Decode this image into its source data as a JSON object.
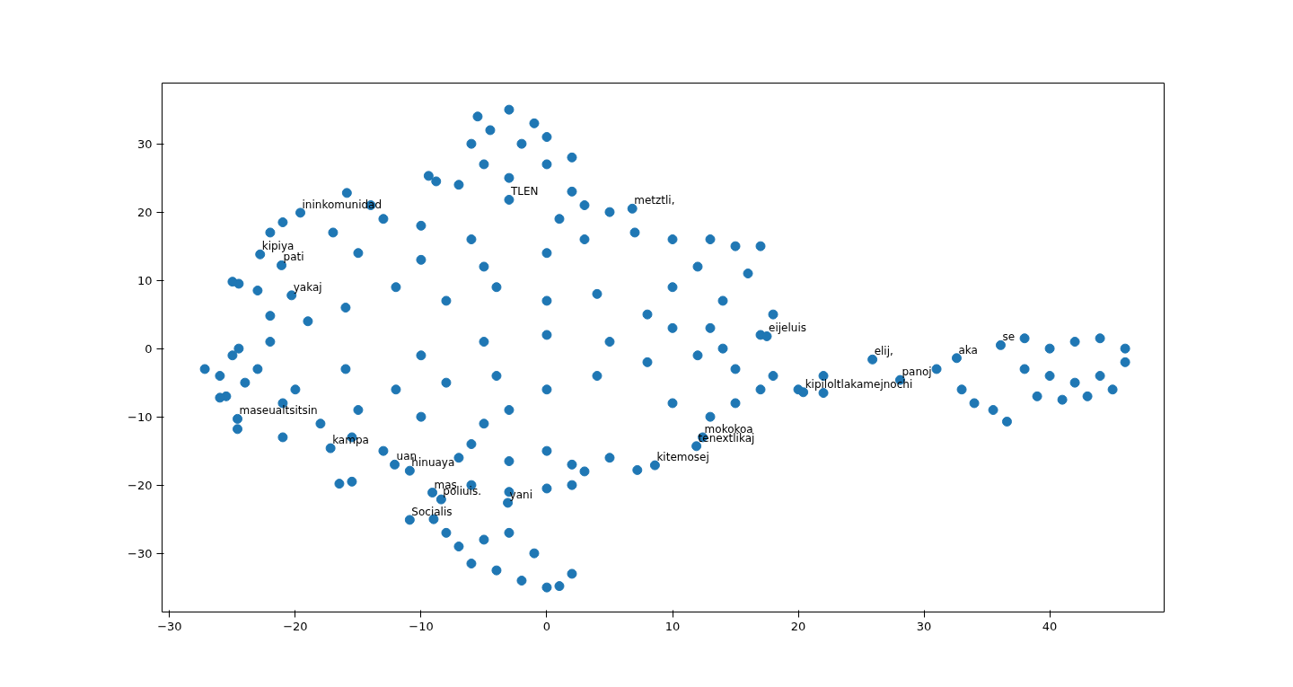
{
  "chart_data": {
    "type": "scatter",
    "color": "#1f77b4",
    "marker": "circle",
    "grid": false,
    "xlim": [
      -30.6,
      49.1
    ],
    "ylim": [
      -38.6,
      38.9
    ],
    "xticks": [
      -30,
      -20,
      -10,
      0,
      10,
      20,
      30,
      40
    ],
    "yticks": [
      -30,
      -20,
      -10,
      0,
      10,
      20,
      30
    ],
    "x": [
      -5.5,
      -3,
      -1,
      -4.5,
      -6,
      -2,
      0,
      -5,
      -3,
      0,
      2,
      -7,
      -9.4,
      -8.8,
      -3,
      2,
      3,
      5,
      6.8,
      1,
      -15.9,
      -14,
      -19.6,
      -21,
      -22,
      -22.8,
      -21.1,
      -24.5,
      -25,
      -23,
      -20.3,
      -22,
      -17,
      -13,
      -10,
      -6,
      -15,
      -10,
      -5,
      0,
      3,
      7,
      10,
      13,
      15,
      17,
      12,
      16,
      10,
      14,
      18,
      17,
      13,
      8,
      4,
      0,
      -4,
      -8,
      -12,
      -16,
      -19,
      -22,
      -24.5,
      -25,
      -27.2,
      -26,
      -23,
      -24,
      -20,
      -25.5,
      -26,
      -21,
      -24.6,
      -24.6,
      -21,
      -17.2,
      -15.5,
      -12.1,
      -10.9,
      -13,
      -18,
      -15,
      -10,
      -5,
      -3,
      -6,
      -7,
      -3,
      0,
      2,
      3,
      5,
      7.2,
      8.6,
      12.4,
      11.9,
      13,
      10,
      15,
      17,
      20,
      22,
      20.4,
      18,
      15,
      12,
      17.5,
      14,
      8,
      4,
      0,
      -4,
      -8,
      -12,
      -16,
      -10,
      -5,
      0,
      5,
      10,
      22,
      -15.5,
      -16.5,
      -9.1,
      -8.4,
      -6,
      -3,
      0,
      2,
      -3.1,
      -10.9,
      -9,
      -8,
      -7,
      -6,
      -4,
      -2,
      0,
      1,
      2,
      -1,
      -5,
      -3,
      25.9,
      28.1,
      31,
      32.6,
      33,
      34,
      35.5,
      36.1,
      36.6,
      38,
      40,
      42,
      44,
      46,
      38,
      40,
      42,
      44,
      46,
      39,
      41,
      43,
      45
    ],
    "values": [
      34,
      35,
      33,
      32,
      30,
      30,
      31,
      27,
      25,
      27,
      28,
      24,
      25.3,
      24.5,
      21.8,
      23,
      21,
      20,
      20.5,
      19,
      22.8,
      21,
      19.9,
      18.5,
      17,
      13.8,
      12.2,
      9.5,
      9.8,
      8.5,
      7.8,
      4.8,
      17,
      19,
      18,
      16,
      14,
      13,
      12,
      14,
      16,
      17,
      16,
      16,
      15,
      15,
      12,
      11,
      9,
      7,
      5,
      2,
      3,
      5,
      8,
      7,
      9,
      7,
      9,
      6,
      4,
      1,
      0,
      -1,
      -3,
      -4,
      -3,
      -5,
      -6,
      -7,
      -7.2,
      -8,
      -10.3,
      -11.8,
      -13,
      -14.6,
      -13,
      -17,
      -17.9,
      -15,
      -11,
      -9,
      -10,
      -11,
      -9,
      -14,
      -16,
      -16.5,
      -15,
      -17,
      -18,
      -16,
      -17.8,
      -17.1,
      -13,
      -14.3,
      -10,
      -8,
      -8,
      -6,
      -6,
      -6.5,
      -6.4,
      -4,
      -3,
      -1,
      1.8,
      0,
      -2,
      -4,
      -6,
      -4,
      -5,
      -6,
      -3,
      -1,
      1,
      2,
      1,
      3,
      -4,
      -19.5,
      -19.8,
      -21.1,
      -22.1,
      -20,
      -21,
      -20.5,
      -20,
      -22.6,
      -25.1,
      -25,
      -27,
      -29,
      -31.5,
      -32.5,
      -34,
      -35,
      -34.8,
      -33,
      -30,
      -28,
      -27,
      -1.6,
      -4.6,
      -3,
      -1.4,
      -6,
      -8,
      -9,
      0.5,
      -10.7,
      1.5,
      0,
      1,
      1.5,
      0,
      -3,
      -4,
      -5,
      -4,
      -2,
      -7,
      -7.5,
      -7,
      -6
    ],
    "annotations": [
      {
        "text": "elij,",
        "x": 25.9,
        "y": -1.6
      },
      {
        "text": "panoj",
        "x": 28.1,
        "y": -4.6
      },
      {
        "text": "tenextlikaj",
        "x": 11.9,
        "y": -14.3
      },
      {
        "text": "kitemosej",
        "x": 8.6,
        "y": -17.1
      },
      {
        "text": "mokokoa",
        "x": 12.4,
        "y": -13.0
      },
      {
        "text": "TLEN",
        "x": -3,
        "y": 21.8
      },
      {
        "text": "kampa",
        "x": -17.2,
        "y": -14.6
      },
      {
        "text": "uan",
        "x": -12.1,
        "y": -17.0
      },
      {
        "text": "hinuaya",
        "x": -10.9,
        "y": -17.9
      },
      {
        "text": "mas",
        "x": -9.1,
        "y": -21.1
      },
      {
        "text": "poliuis.",
        "x": -8.4,
        "y": -22.1
      },
      {
        "text": "Socialis",
        "x": -10.9,
        "y": -25.1
      },
      {
        "text": "pati",
        "x": -21.1,
        "y": 12.2
      },
      {
        "text": "kipiya",
        "x": -22.8,
        "y": 13.8
      },
      {
        "text": "yakaj",
        "x": -20.3,
        "y": 7.8
      },
      {
        "text": "ininkomunidad",
        "x": -19.6,
        "y": 19.9
      },
      {
        "text": "metztli,",
        "x": 6.8,
        "y": 20.5
      },
      {
        "text": "eijeluis",
        "x": 17.5,
        "y": 1.8
      },
      {
        "text": "se",
        "x": 36.1,
        "y": 0.5
      },
      {
        "text": "aka",
        "x": 32.6,
        "y": -1.4
      },
      {
        "text": "maseualtsitsin",
        "x": -24.6,
        "y": -10.3
      },
      {
        "text": "yani",
        "x": -3.1,
        "y": -22.6
      },
      {
        "text": "kipiloltlakamejnochi",
        "x": 20.4,
        "y": -6.4
      }
    ]
  }
}
